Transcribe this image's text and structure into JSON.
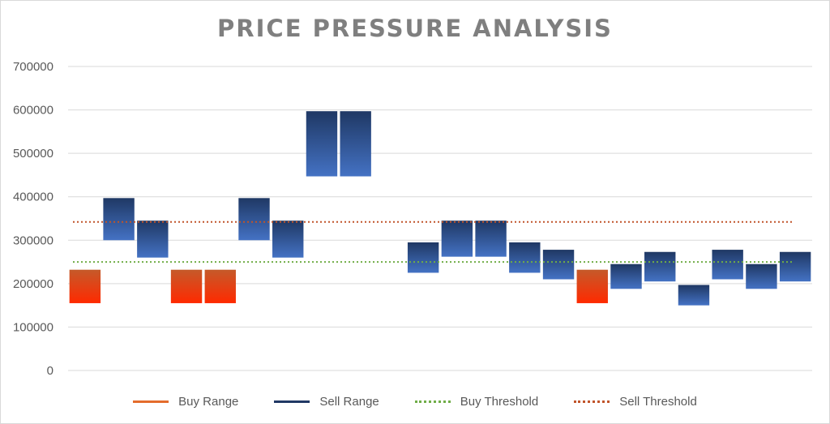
{
  "chart_data": {
    "type": "bar",
    "title": "PRICE PRESSURE ANALYSIS",
    "xlabel": "",
    "ylabel": "",
    "ylim": [
      0,
      700000
    ],
    "y_ticks": [
      "0",
      "100000",
      "200000",
      "300000",
      "400000",
      "500000",
      "600000",
      "700000"
    ],
    "grid": true,
    "legend_position": "bottom",
    "bars": [
      {
        "type": "buy",
        "low": 155000,
        "high": 232000
      },
      {
        "type": "sell",
        "low": 300000,
        "high": 397000
      },
      {
        "type": "sell",
        "low": 260000,
        "high": 345000
      },
      {
        "type": "buy",
        "low": 155000,
        "high": 232000
      },
      {
        "type": "buy",
        "low": 155000,
        "high": 232000
      },
      {
        "type": "sell",
        "low": 300000,
        "high": 397000
      },
      {
        "type": "sell",
        "low": 260000,
        "high": 345000
      },
      {
        "type": "sell",
        "low": 447000,
        "high": 597000
      },
      {
        "type": "sell",
        "low": 447000,
        "high": 597000
      },
      {
        "type": "none"
      },
      {
        "type": "sell",
        "low": 225000,
        "high": 295000
      },
      {
        "type": "sell",
        "low": 262000,
        "high": 345000
      },
      {
        "type": "sell",
        "low": 262000,
        "high": 345000
      },
      {
        "type": "sell",
        "low": 225000,
        "high": 295000
      },
      {
        "type": "sell",
        "low": 210000,
        "high": 278000
      },
      {
        "type": "buy",
        "low": 155000,
        "high": 232000
      },
      {
        "type": "sell",
        "low": 188000,
        "high": 245000
      },
      {
        "type": "sell",
        "low": 205000,
        "high": 273000
      },
      {
        "type": "sell",
        "low": 150000,
        "high": 197000
      },
      {
        "type": "sell",
        "low": 210000,
        "high": 278000
      },
      {
        "type": "sell",
        "low": 188000,
        "high": 245000
      },
      {
        "type": "sell",
        "low": 205000,
        "high": 273000
      }
    ],
    "buy_threshold": 250000,
    "sell_threshold": 342000,
    "legend": [
      "Buy Range",
      "Sell Range",
      "Buy Threshold",
      "Sell Threshold"
    ],
    "colors": {
      "buy_top": "#c55a2a",
      "buy_bottom": "#ff2a00",
      "sell_top": "#1f3864",
      "sell_bottom": "#4472c4",
      "buy_threshold": "#70ad47",
      "sell_threshold": "#c0542a",
      "grid": "#d9d9d9"
    }
  }
}
